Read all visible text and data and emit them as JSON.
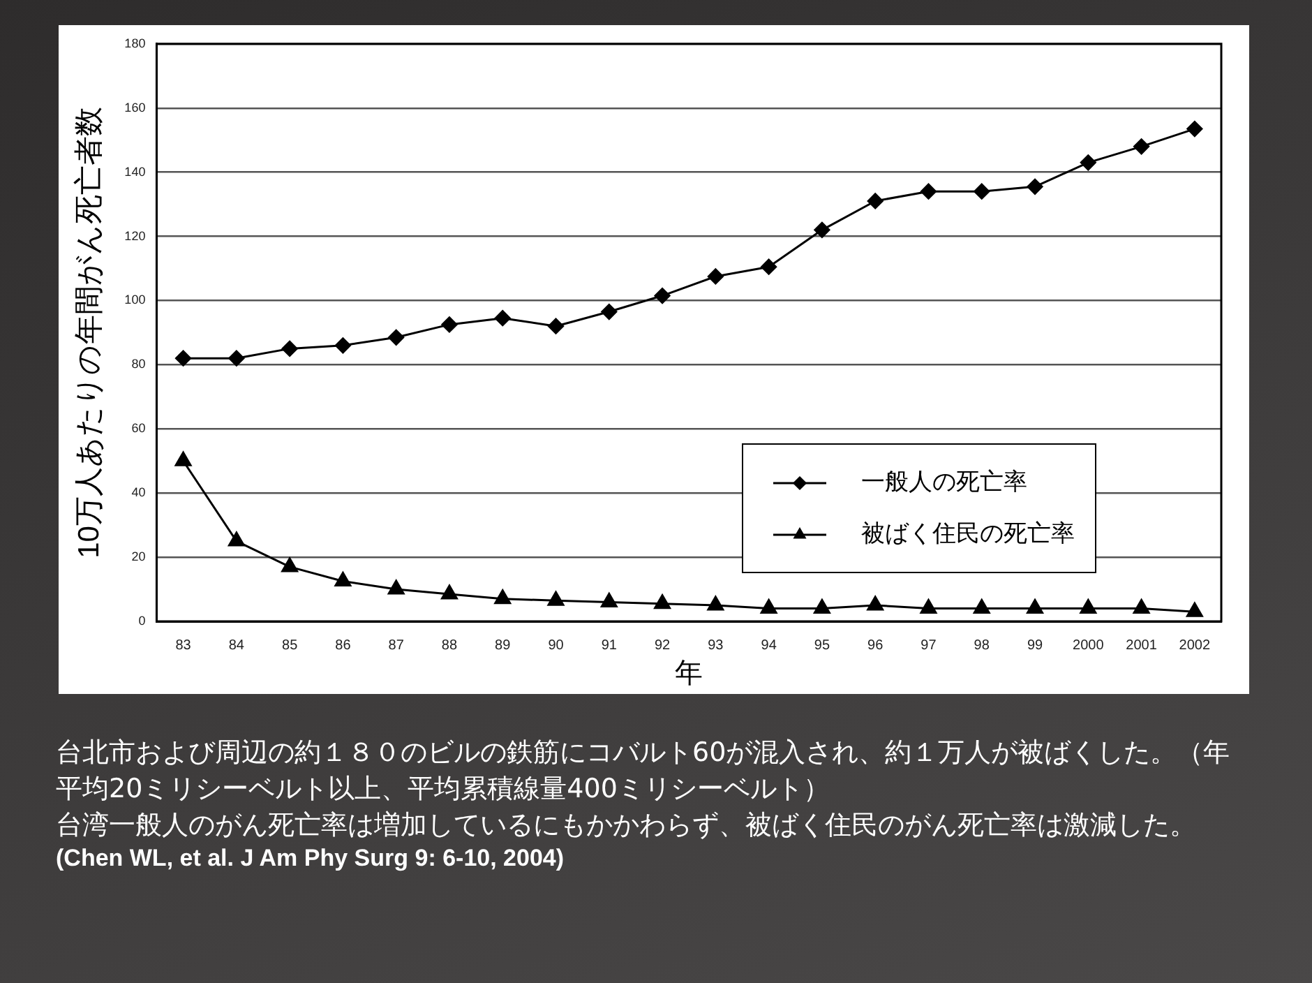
{
  "chart_data": {
    "type": "line",
    "ylabel": "10万人あたりの年間がん死亡者数",
    "xlabel": "年",
    "categories": [
      "83",
      "84",
      "85",
      "86",
      "87",
      "88",
      "89",
      "90",
      "91",
      "92",
      "93",
      "94",
      "95",
      "96",
      "97",
      "98",
      "99",
      "2000",
      "2001",
      "2002"
    ],
    "series": [
      {
        "name": "一般人の死亡率",
        "color": "#000000",
        "marker": "diamond",
        "values": [
          82,
          82,
          85,
          86,
          88.5,
          92.5,
          94.5,
          92,
          96.5,
          101.5,
          107.5,
          110.5,
          122,
          131,
          134,
          134,
          135.5,
          143,
          148,
          153.5
        ]
      },
      {
        "name": "被ばく住民の死亡率",
        "color": "#000000",
        "marker": "triangle",
        "values": [
          50,
          25,
          17,
          12.5,
          10,
          8.5,
          7,
          6.5,
          6,
          5.5,
          5,
          4,
          4,
          5,
          4,
          4,
          4,
          4,
          4,
          3
        ]
      }
    ],
    "ylim": [
      0,
      180
    ],
    "yticks": [
      0,
      20,
      40,
      60,
      80,
      100,
      120,
      140,
      160,
      180
    ],
    "grid": "y",
    "legend": "bottom right",
    "line_style": "solid",
    "annotations": [
      "台北市および周辺の約１８０のビルの鉄筋にコバルト60が混入され、約１万人が被ばくした。（年平均20ミリシーベルト以上、平均累積線量400ミリシーベルト）",
      "台湾一般人のがん死亡率は増加しているにもかかわらず、被ばく住民のがん死亡率は激減した。",
      "(Chen WL, et al.  J Am Phy Surg 9: 6-10, 2004)"
    ]
  }
}
